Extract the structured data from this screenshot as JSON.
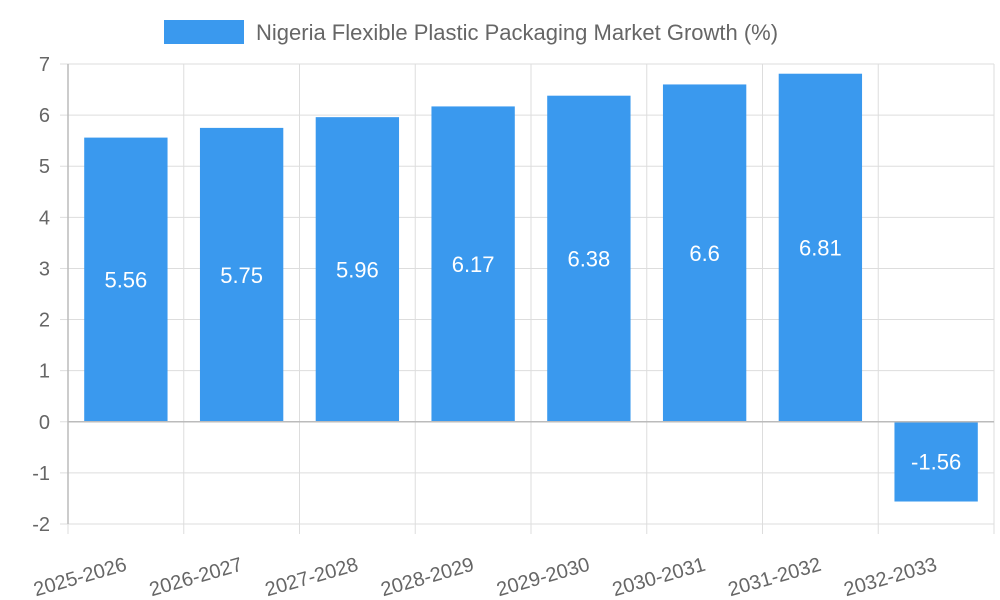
{
  "chart_data": {
    "type": "bar",
    "categories": [
      "2025-2026",
      "2026-2027",
      "2027-2028",
      "2028-2029",
      "2029-2030",
      "2030-2031",
      "2031-2032",
      "2032-2033"
    ],
    "series": [
      {
        "name": "Nigeria Flexible Plastic Packaging Market Growth (%)",
        "values": [
          5.56,
          5.75,
          5.96,
          6.17,
          6.38,
          6.6,
          6.81,
          -1.56
        ],
        "color": "#3a99ee"
      }
    ],
    "ylim": [
      -2,
      7
    ],
    "yticks": [
      7,
      6,
      5,
      4,
      3,
      2,
      1,
      0,
      -1,
      -2
    ],
    "grid": true,
    "legend_position": "top",
    "colors": {
      "grid": "#dddddd",
      "axis": "#bbbbbb",
      "tick_text": "#666666",
      "label_text": "#ffffff"
    }
  }
}
